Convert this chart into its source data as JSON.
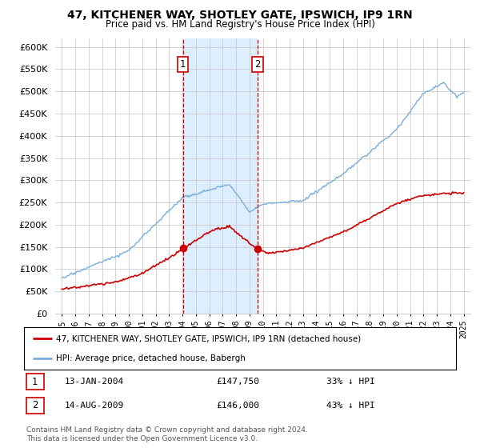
{
  "title": "47, KITCHENER WAY, SHOTLEY GATE, IPSWICH, IP9 1RN",
  "subtitle": "Price paid vs. HM Land Registry's House Price Index (HPI)",
  "legend_line1": "47, KITCHENER WAY, SHOTLEY GATE, IPSWICH, IP9 1RN (detached house)",
  "legend_line2": "HPI: Average price, detached house, Babergh",
  "transaction1_label": "1",
  "transaction1_date": "13-JAN-2004",
  "transaction1_price": "£147,750",
  "transaction1_hpi": "33% ↓ HPI",
  "transaction1_year": 2004.04,
  "transaction1_price_val": 147750,
  "transaction2_label": "2",
  "transaction2_date": "14-AUG-2009",
  "transaction2_price": "£146,000",
  "transaction2_hpi": "43% ↓ HPI",
  "transaction2_year": 2009.62,
  "transaction2_price_val": 146000,
  "footnote1": "Contains HM Land Registry data © Crown copyright and database right 2024.",
  "footnote2": "This data is licensed under the Open Government Licence v3.0.",
  "red_color": "#cc0000",
  "blue_color": "#7aaddb",
  "shade_color": "#ddeeff",
  "vline_color": "#cc0000",
  "background_color": "#ffffff",
  "grid_color": "#cccccc",
  "ylim_max": 620000,
  "ylim_min": 0,
  "xlim_min": 1994.5,
  "xlim_max": 2025.5
}
